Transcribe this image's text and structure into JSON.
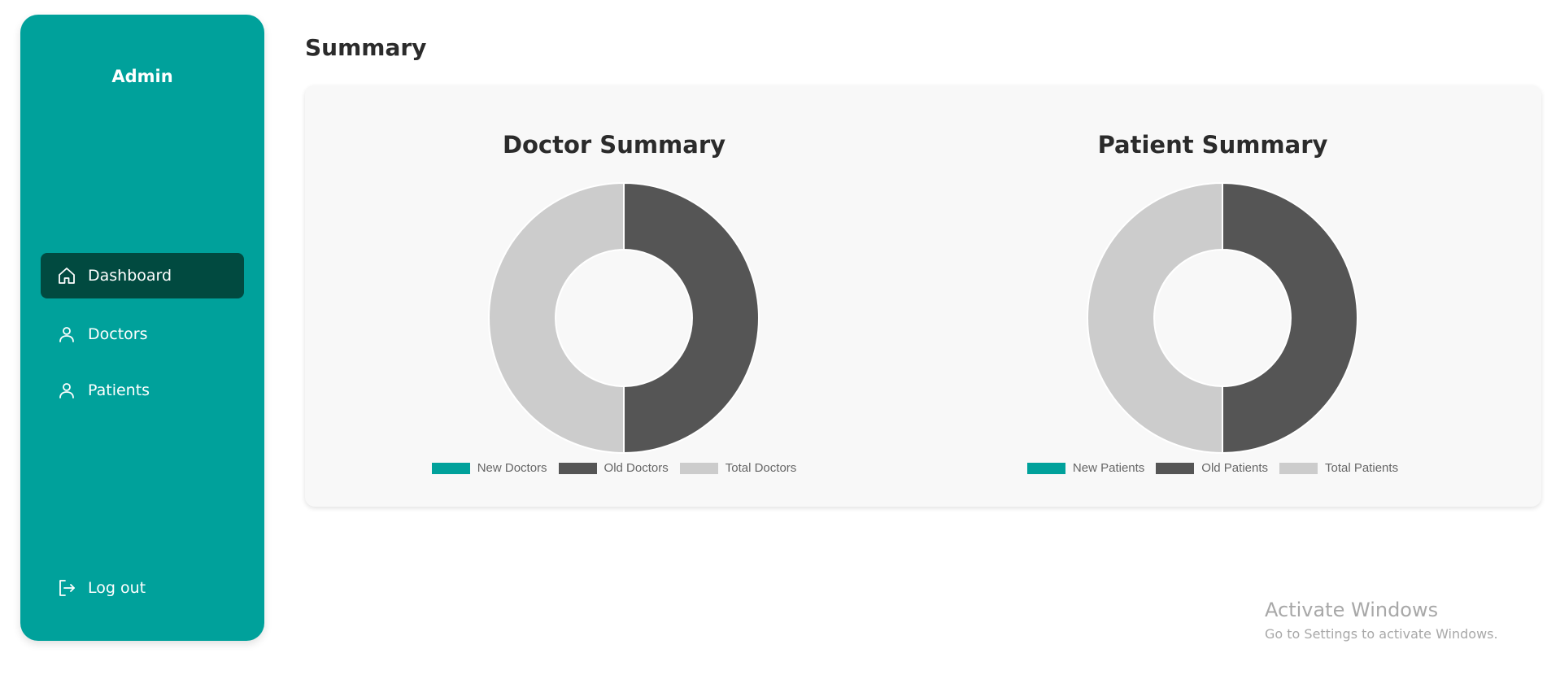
{
  "sidebar": {
    "brand": "Admin",
    "items": [
      {
        "label": "Dashboard",
        "icon": "home-icon",
        "active": true
      },
      {
        "label": "Doctors",
        "icon": "user-icon",
        "active": false
      },
      {
        "label": "Patients",
        "icon": "user-icon",
        "active": false
      }
    ],
    "logout": {
      "label": "Log out",
      "icon": "logout-icon"
    }
  },
  "main": {
    "title": "Summary"
  },
  "colors": {
    "sidebar_bg": "#00a19b",
    "active_item": "#014a40",
    "new": "#00a19b",
    "old": "#555555",
    "total": "#cccccc"
  },
  "chart_data": [
    {
      "type": "pie",
      "variant": "donut",
      "title": "Doctor Summary",
      "labels": [
        "New Doctors",
        "Old Doctors",
        "Total Doctors"
      ],
      "values": [
        0,
        1,
        1
      ],
      "colors": [
        "#00a19b",
        "#555555",
        "#cccccc"
      ],
      "legend": "bottom"
    },
    {
      "type": "pie",
      "variant": "donut",
      "title": "Patient Summary",
      "labels": [
        "New Patients",
        "Old Patients",
        "Total Patients"
      ],
      "values": [
        0,
        1,
        1
      ],
      "colors": [
        "#00a19b",
        "#555555",
        "#cccccc"
      ],
      "legend": "bottom"
    }
  ],
  "watermark": {
    "title": "Activate Windows",
    "subtitle": "Go to Settings to activate Windows."
  }
}
